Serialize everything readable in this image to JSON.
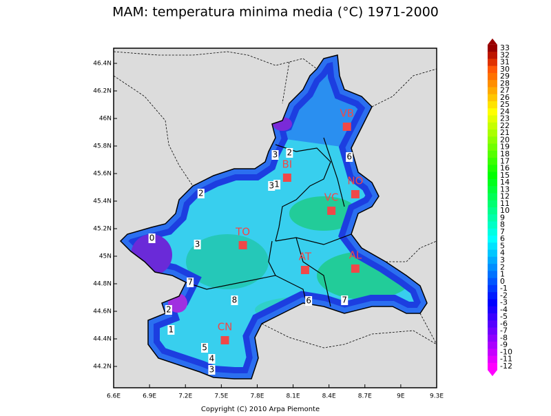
{
  "map": {
    "title": "MAM: temperatura minima media (°C) 1971-2000",
    "footer": "Copyright (C) 2010 Arpa Piemonte",
    "xlim": [
      6.6,
      9.3
    ],
    "ylim": [
      44.045,
      46.51
    ],
    "xticks": [
      {
        "value": 6.6,
        "label": "6.6E"
      },
      {
        "value": 6.9,
        "label": "6.9E"
      },
      {
        "value": 7.2,
        "label": "7.2E"
      },
      {
        "value": 7.5,
        "label": "7.5E"
      },
      {
        "value": 7.8,
        "label": "7.8E"
      },
      {
        "value": 8.1,
        "label": "8.1E"
      },
      {
        "value": 8.4,
        "label": "8.4E"
      },
      {
        "value": 8.7,
        "label": "8.7E"
      },
      {
        "value": 9,
        "label": "9E"
      },
      {
        "value": 9.3,
        "label": "9.3E"
      }
    ],
    "yticks": [
      {
        "value": 44.2,
        "label": "44.2N"
      },
      {
        "value": 44.4,
        "label": "44.4N"
      },
      {
        "value": 44.6,
        "label": "44.6N"
      },
      {
        "value": 44.8,
        "label": "44.8N"
      },
      {
        "value": 45,
        "label": "45N"
      },
      {
        "value": 45.2,
        "label": "45.2N"
      },
      {
        "value": 45.4,
        "label": "45.4N"
      },
      {
        "value": 45.6,
        "label": "45.6N"
      },
      {
        "value": 45.8,
        "label": "45.8N"
      },
      {
        "value": 46,
        "label": "46N"
      },
      {
        "value": 46.2,
        "label": "46.2N"
      },
      {
        "value": 46.4,
        "label": "46.4N"
      }
    ],
    "cities": [
      {
        "name": "VB",
        "lon": 8.55,
        "lat": 45.94
      },
      {
        "name": "BI",
        "lon": 8.05,
        "lat": 45.57
      },
      {
        "name": "NO",
        "lon": 8.62,
        "lat": 45.45
      },
      {
        "name": "VC",
        "lon": 8.42,
        "lat": 45.33
      },
      {
        "name": "TO",
        "lon": 7.68,
        "lat": 45.08
      },
      {
        "name": "AT",
        "lon": 8.2,
        "lat": 44.9
      },
      {
        "name": "AL",
        "lon": 8.62,
        "lat": 44.91
      },
      {
        "name": "CN",
        "lon": 7.53,
        "lat": 44.39
      }
    ],
    "contour_labels": [
      {
        "text": "3",
        "lon": 7.95,
        "lat": 45.735
      },
      {
        "text": "2",
        "lon": 8.07,
        "lat": 45.75
      },
      {
        "text": "6",
        "lon": 8.57,
        "lat": 45.72
      },
      {
        "text": "3",
        "lon": 7.92,
        "lat": 45.51
      },
      {
        "text": "1",
        "lon": 7.965,
        "lat": 45.52
      },
      {
        "text": "2",
        "lon": 7.33,
        "lat": 45.455
      },
      {
        "text": "0",
        "lon": 6.92,
        "lat": 45.13
      },
      {
        "text": "3",
        "lon": 7.3,
        "lat": 45.085
      },
      {
        "text": "7",
        "lon": 7.24,
        "lat": 44.81
      },
      {
        "text": "8",
        "lon": 7.61,
        "lat": 44.68
      },
      {
        "text": "6",
        "lon": 8.23,
        "lat": 44.675
      },
      {
        "text": "7",
        "lon": 8.53,
        "lat": 44.68
      },
      {
        "text": "2",
        "lon": 7.06,
        "lat": 44.61
      },
      {
        "text": "1",
        "lon": 7.08,
        "lat": 44.465
      },
      {
        "text": "5",
        "lon": 7.36,
        "lat": 44.335
      },
      {
        "text": "4",
        "lon": 7.42,
        "lat": 44.255
      },
      {
        "text": "3",
        "lon": 7.42,
        "lat": 44.175
      }
    ],
    "colorbar": [
      33,
      32,
      31,
      30,
      29,
      28,
      27,
      26,
      25,
      24,
      23,
      22,
      21,
      20,
      19,
      18,
      17,
      16,
      15,
      14,
      13,
      12,
      11,
      10,
      9,
      8,
      7,
      6,
      5,
      4,
      3,
      2,
      1,
      0,
      -1,
      -2,
      -3,
      -4,
      -5,
      -6,
      -7,
      -8,
      -9,
      -10,
      -11,
      -12
    ]
  }
}
